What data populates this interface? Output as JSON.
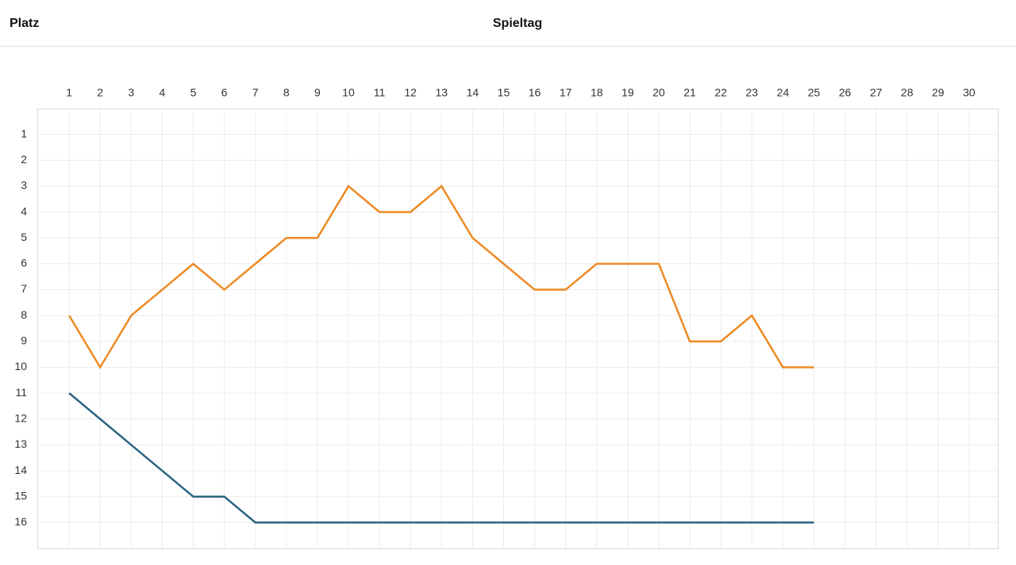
{
  "chart_data": {
    "type": "line",
    "x_label": "Spieltag",
    "y_label": "Platz",
    "x": [
      1,
      2,
      3,
      4,
      5,
      6,
      7,
      8,
      9,
      10,
      11,
      12,
      13,
      14,
      15,
      16,
      17,
      18,
      19,
      20,
      21,
      22,
      23,
      24,
      25
    ],
    "series": [
      {
        "color": "#ee8a24",
        "values": [
          8,
          10,
          8,
          7,
          6,
          7,
          6,
          5,
          5,
          3,
          4,
          4,
          3,
          5,
          6,
          7,
          7,
          6,
          6,
          6,
          9,
          9,
          8,
          10,
          10
        ]
      },
      {
        "color": "#2b6482",
        "values": [
          11,
          12,
          13,
          14,
          15,
          15,
          16,
          16,
          16,
          16,
          16,
          16,
          16,
          16,
          16,
          16,
          16,
          16,
          16,
          16,
          16,
          16,
          16,
          16,
          16
        ]
      }
    ],
    "xlim": [
      0,
      31
    ],
    "xticks": [
      1,
      2,
      3,
      4,
      5,
      6,
      7,
      8,
      9,
      10,
      11,
      12,
      13,
      14,
      15,
      16,
      17,
      18,
      19,
      20,
      21,
      22,
      23,
      24,
      25,
      26,
      27,
      28,
      29,
      30
    ],
    "ylim": [
      17,
      0
    ],
    "yticks": [
      1,
      2,
      3,
      4,
      5,
      6,
      7,
      8,
      9,
      10,
      11,
      12,
      13,
      14,
      15,
      16
    ],
    "grid": true
  }
}
